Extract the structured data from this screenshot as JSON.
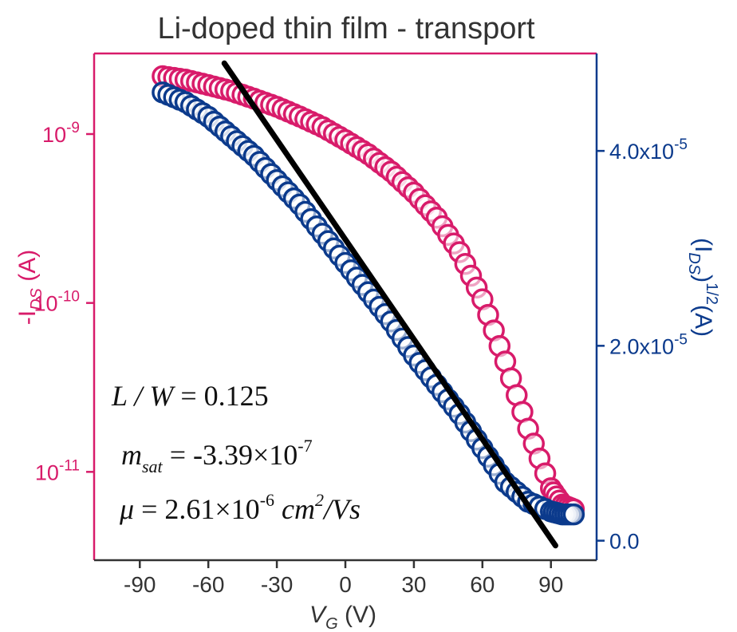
{
  "chart_data": {
    "type": "scatter",
    "title": "Li-doped thin film - transport",
    "xlabel": "V_G (V)",
    "xlabel_main": "V",
    "xlabel_sub": "G",
    "xlabel_unit": " (V)",
    "ylabel_left": "-I_DS (A)",
    "ylabel_left_prefix": "-I",
    "ylabel_left_sub": "DS",
    "ylabel_left_unit": " (A)",
    "ylabel_right": "(I_DS)^1/2(A)",
    "ylabel_right_open": "(I",
    "ylabel_right_sub": "DS",
    "ylabel_right_close": ")",
    "ylabel_right_sup": "1/2",
    "ylabel_right_unit": "(A)",
    "xlim": [
      -110,
      110
    ],
    "ylim_left": [
      3e-12,
      3e-09
    ],
    "ylim_left_scale": "log",
    "ylim_right": [
      -2e-06,
      5e-05
    ],
    "x_ticks": [
      "-90",
      "-60",
      "-30",
      "0",
      "30",
      "60",
      "90"
    ],
    "y_left_ticks": [
      {
        "base": "10",
        "exp": "-9",
        "value": 1e-09
      },
      {
        "base": "10",
        "exp": "-10",
        "value": 1e-10
      },
      {
        "base": "10",
        "exp": "-11",
        "value": 1e-11
      }
    ],
    "y_right_ticks": [
      {
        "mant": "4.0x10",
        "exp": "-5",
        "value": 4e-05
      },
      {
        "mant": "2.0x10",
        "exp": "-5",
        "value": 2e-05
      },
      {
        "mant": "0.0",
        "exp": "",
        "value": 0.0
      }
    ],
    "series": [
      {
        "axis": "left",
        "color": "#d81b6a",
        "marker": "open-circle",
        "x": [
          -80,
          -70,
          -60,
          -50,
          -40,
          -30,
          -20,
          -10,
          0,
          10,
          20,
          30,
          40,
          50,
          60,
          70,
          80,
          90,
          95,
          100
        ],
        "y": [
          2.2e-09,
          2.1e-09,
          1.95e-09,
          1.8e-09,
          1.62e-09,
          1.45e-09,
          1.27e-09,
          1.1e-09,
          9.2e-10,
          7.6e-10,
          6e-10,
          4.5e-10,
          3.2e-10,
          2e-10,
          1.05e-10,
          4.5e-11,
          1.8e-11,
          8e-12,
          6.4e-12,
          6e-12
        ]
      },
      {
        "axis": "right",
        "color": "#0b3a8c",
        "marker": "open-circle",
        "x": [
          -80,
          -70,
          -60,
          -50,
          -40,
          -30,
          -20,
          -10,
          0,
          10,
          20,
          30,
          40,
          50,
          60,
          70,
          80,
          90,
          95,
          100
        ],
        "y": [
          4.6e-05,
          4.5e-05,
          4.35e-05,
          4.15e-05,
          3.95e-05,
          3.7e-05,
          3.45e-05,
          3.15e-05,
          2.85e-05,
          2.55e-05,
          2.25e-05,
          1.9e-05,
          1.6e-05,
          1.3e-05,
          9.5e-06,
          6e-06,
          4e-06,
          3e-06,
          2.7e-06,
          2.7e-06
        ]
      }
    ],
    "fit_line": {
      "axis": "right",
      "color": "#000000",
      "x": [
        -53,
        92
      ],
      "y": [
        4.9e-05,
        -5e-07
      ]
    },
    "annotations": {
      "lw_label": "L / W",
      "lw_value": " = 0.125",
      "msat_label": "m",
      "msat_sub": "sat",
      "msat_value": " = -3.39×10",
      "msat_exp": "-7",
      "mu_label": "μ",
      "mu_value": " = 2.61×10",
      "mu_exp": "-6",
      "mu_unit_a": " cm",
      "mu_unit_exp": "2",
      "mu_unit_b": "/Vs"
    },
    "legend": "none",
    "grid": false
  }
}
